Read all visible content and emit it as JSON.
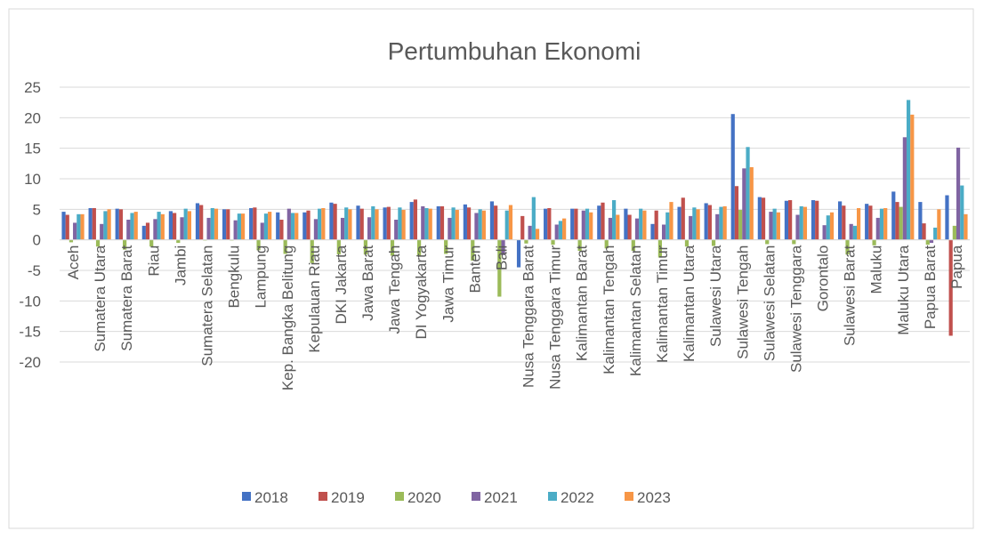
{
  "chart_data": {
    "type": "bar",
    "title": "Pertumbuhan Ekonomi",
    "categories": [
      "Aceh",
      "Sumatera Utara",
      "Sumatera Barat",
      "Riau",
      "Jambi",
      "Sumatera Selatan",
      "Bengkulu",
      "Lampung",
      "Kep. Bangka Belitung",
      "Kepulauan Riau",
      "DKI Jakarta",
      "Jawa Barat",
      "Jawa Tengah",
      "DI Yogyakarta",
      "Jawa Timur",
      "Banten",
      "Bali",
      "Nusa Tenggara Barat",
      "Nusa Tenggara Timur",
      "Kalimantan Barat",
      "Kalimantan Tengah",
      "Kalimantan Selatan",
      "Kalimantan Timur",
      "Kalimantan Utara",
      "Sulawesi Utara",
      "Sulawesi Tengah",
      "Sulawesi Selatan",
      "Sulawesi Tenggara",
      "Gorontalo",
      "Sulawesi Barat",
      "Maluku",
      "Maluku Utara",
      "Papua Barat",
      "Papua"
    ],
    "series": [
      {
        "name": "2018",
        "color": "#4472c4",
        "values": [
          4.6,
          5.2,
          5.1,
          2.3,
          4.7,
          6.0,
          5.0,
          5.2,
          4.5,
          4.5,
          6.1,
          5.6,
          5.3,
          6.2,
          5.5,
          5.8,
          6.3,
          -4.5,
          5.1,
          5.1,
          5.6,
          5.1,
          2.6,
          5.4,
          6.0,
          20.6,
          7.0,
          6.4,
          6.5,
          6.3,
          5.9,
          7.9,
          6.2,
          7.3
        ]
      },
      {
        "name": "2019",
        "color": "#c0504d",
        "values": [
          4.1,
          5.2,
          5.0,
          2.8,
          4.4,
          5.7,
          5.0,
          5.3,
          3.3,
          4.8,
          5.9,
          5.1,
          5.4,
          6.6,
          5.5,
          5.3,
          5.6,
          3.9,
          5.2,
          5.1,
          6.1,
          4.1,
          4.8,
          6.9,
          5.7,
          8.8,
          6.9,
          6.5,
          6.4,
          5.6,
          5.6,
          6.2,
          2.7,
          -15.7
        ]
      },
      {
        "name": "2020",
        "color": "#9bbb59",
        "values": [
          -0.4,
          -1.1,
          -1.6,
          -1.1,
          -0.5,
          -0.1,
          -0.1,
          -1.7,
          -2.3,
          -3.8,
          -2.4,
          -2.4,
          -2.6,
          -2.7,
          -2.3,
          -3.4,
          -9.3,
          -0.6,
          -0.8,
          -1.8,
          -1.4,
          -1.8,
          -2.9,
          -1.1,
          -1.0,
          4.9,
          -0.7,
          -0.7,
          0.0,
          -2.4,
          -0.9,
          5.4,
          -0.8,
          2.3
        ]
      },
      {
        "name": "2021",
        "color": "#8064a2",
        "values": [
          2.8,
          2.6,
          3.3,
          3.4,
          3.7,
          3.6,
          3.2,
          2.8,
          5.1,
          3.4,
          3.6,
          3.7,
          3.3,
          5.5,
          3.6,
          4.4,
          -2.5,
          2.3,
          2.5,
          4.8,
          3.6,
          3.5,
          2.5,
          3.9,
          4.2,
          11.7,
          4.6,
          4.1,
          2.4,
          2.6,
          3.6,
          16.8,
          -0.5,
          15.1
        ]
      },
      {
        "name": "2022",
        "color": "#4bacc6",
        "values": [
          4.2,
          4.7,
          4.4,
          4.6,
          5.1,
          5.2,
          4.3,
          4.3,
          4.4,
          5.1,
          5.3,
          5.5,
          5.3,
          5.2,
          5.3,
          5.0,
          4.8,
          7.0,
          3.1,
          5.1,
          6.5,
          5.1,
          4.5,
          5.3,
          5.4,
          15.2,
          5.1,
          5.5,
          4.0,
          2.3,
          5.1,
          22.9,
          2.0,
          8.9
        ]
      },
      {
        "name": "2023",
        "color": "#f79646",
        "values": [
          4.2,
          5.0,
          4.6,
          4.2,
          4.7,
          5.1,
          4.3,
          4.6,
          4.4,
          5.2,
          5.0,
          5.0,
          4.9,
          5.1,
          4.9,
          4.8,
          5.7,
          1.8,
          3.5,
          4.5,
          4.1,
          4.8,
          6.2,
          5.0,
          5.5,
          11.9,
          4.5,
          5.4,
          4.5,
          5.2,
          5.2,
          20.5,
          5.0,
          4.2
        ]
      }
    ],
    "ylim": [
      -20,
      25
    ],
    "yticks": [
      -20,
      -15,
      -10,
      -5,
      0,
      5,
      10,
      15,
      20,
      25
    ],
    "grid": true,
    "legend": "bottom"
  }
}
